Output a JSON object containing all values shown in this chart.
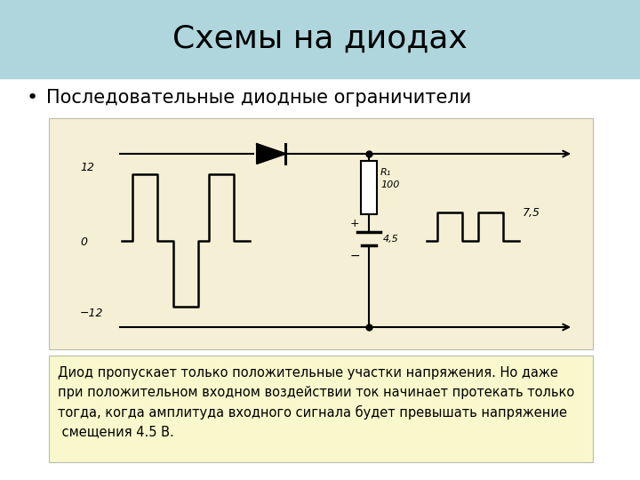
{
  "title": "Схемы на диодах",
  "title_bg": "#aed6dc",
  "bullet_text": "Последовательные диодные ограничители",
  "description_text": "Диод пропускает только положительные участки напряжения. Но даже\nпри положительном входном воздействии ток начинает протекать только\nтогда, когда амплитуда входного сигнала будет превышать напряжение\n смещения 4.5 В.",
  "circuit_bg": "#f5f0d5",
  "desc_bg": "#f8f8cc",
  "bg_color": "#ffffff",
  "title_fontsize": 26,
  "bullet_fontsize": 15,
  "desc_fontsize": 10.5
}
